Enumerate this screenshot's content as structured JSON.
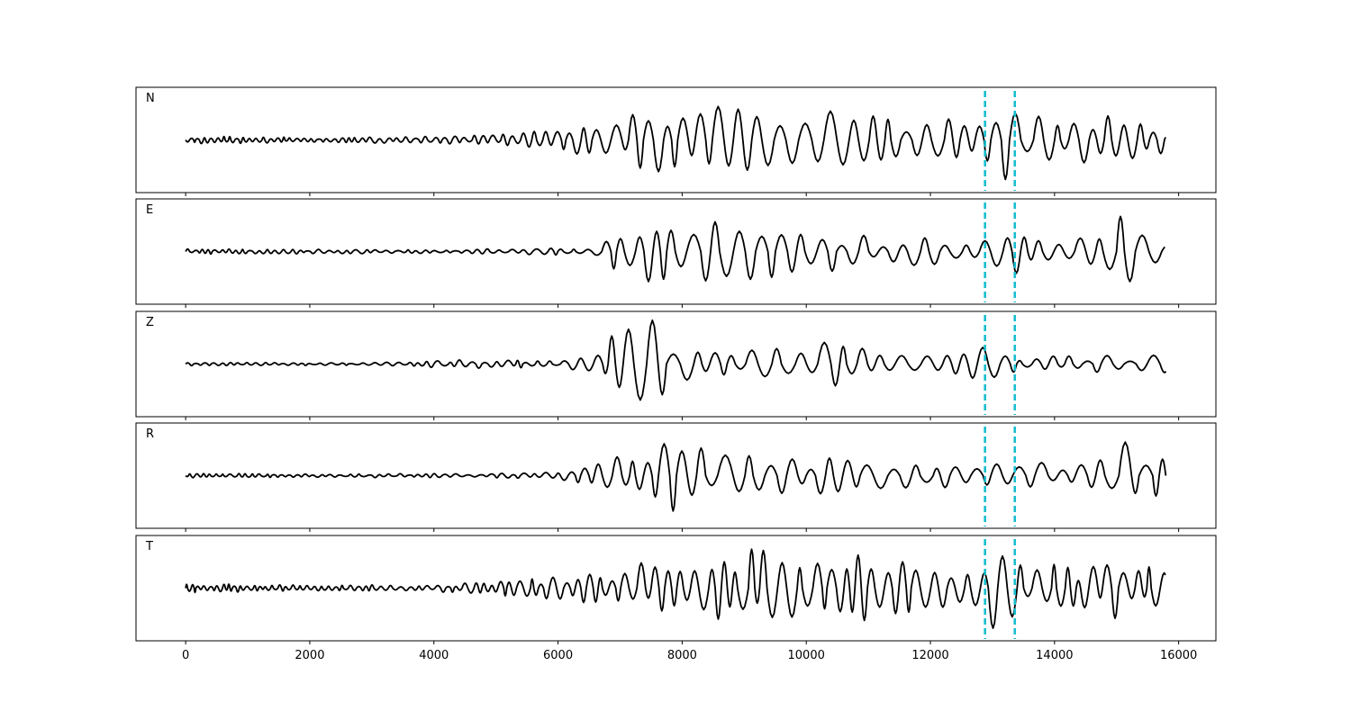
{
  "chart_data": {
    "type": "line",
    "title": "",
    "xlabel": "",
    "ylabel": "",
    "xlim": [
      -800,
      16600
    ],
    "xticks": [
      0,
      2000,
      4000,
      6000,
      8000,
      10000,
      12000,
      14000,
      16000
    ],
    "xtick_labels": [
      "0",
      "2000",
      "4000",
      "6000",
      "8000",
      "10000",
      "12000",
      "14000",
      "16000"
    ],
    "x_start": 0,
    "x_end": 15800,
    "grid": false,
    "legend": "none",
    "colors": {
      "trace": "#000000",
      "marker": "#17becf",
      "frame": "#000000"
    },
    "markers": [
      12880,
      13360
    ],
    "panels": [
      {
        "label": "N",
        "envelope": [
          [
            0,
            0.09
          ],
          [
            2000,
            0.06
          ],
          [
            4000,
            0.08
          ],
          [
            5000,
            0.14
          ],
          [
            6000,
            0.3
          ],
          [
            6600,
            0.4
          ],
          [
            7000,
            0.55
          ],
          [
            7600,
            0.75
          ],
          [
            8000,
            0.92
          ],
          [
            8600,
            0.85
          ],
          [
            9000,
            1.0
          ],
          [
            10000,
            0.7
          ],
          [
            10600,
            0.8
          ],
          [
            11000,
            0.55
          ],
          [
            12000,
            0.55
          ],
          [
            12800,
            0.45
          ],
          [
            13200,
            0.9
          ],
          [
            14000,
            0.5
          ],
          [
            15000,
            0.55
          ],
          [
            15800,
            0.4
          ]
        ],
        "period": [
          [
            0,
            95
          ],
          [
            5000,
            160
          ],
          [
            8000,
            320
          ],
          [
            15800,
            280
          ]
        ]
      },
      {
        "label": "E",
        "envelope": [
          [
            0,
            0.06
          ],
          [
            2000,
            0.05
          ],
          [
            4000,
            0.05
          ],
          [
            6000,
            0.08
          ],
          [
            6600,
            0.15
          ],
          [
            6800,
            0.45
          ],
          [
            7400,
            0.65
          ],
          [
            7800,
            0.9
          ],
          [
            8800,
            0.6
          ],
          [
            9000,
            0.7
          ],
          [
            10000,
            0.55
          ],
          [
            11000,
            0.35
          ],
          [
            12000,
            0.3
          ],
          [
            12800,
            0.2
          ],
          [
            13200,
            0.65
          ],
          [
            13600,
            0.3
          ],
          [
            14600,
            0.35
          ],
          [
            15000,
            1.0
          ],
          [
            15400,
            0.7
          ],
          [
            15800,
            0.3
          ]
        ],
        "period": [
          [
            0,
            110
          ],
          [
            6000,
            200
          ],
          [
            8000,
            360
          ],
          [
            15800,
            330
          ]
        ]
      },
      {
        "label": "Z",
        "envelope": [
          [
            0,
            0.04
          ],
          [
            3000,
            0.03
          ],
          [
            4500,
            0.1
          ],
          [
            6000,
            0.08
          ],
          [
            6600,
            0.2
          ],
          [
            6900,
            0.75
          ],
          [
            7500,
            1.0
          ],
          [
            8000,
            0.45
          ],
          [
            9000,
            0.35
          ],
          [
            10000,
            0.4
          ],
          [
            10500,
            0.55
          ],
          [
            11000,
            0.3
          ],
          [
            12000,
            0.25
          ],
          [
            12800,
            0.4
          ],
          [
            13500,
            0.2
          ],
          [
            15800,
            0.2
          ]
        ],
        "period": [
          [
            0,
            130
          ],
          [
            6000,
            190
          ],
          [
            7500,
            330
          ],
          [
            15800,
            300
          ]
        ]
      },
      {
        "label": "R",
        "envelope": [
          [
            0,
            0.05
          ],
          [
            2000,
            0.04
          ],
          [
            5000,
            0.05
          ],
          [
            6000,
            0.08
          ],
          [
            6600,
            0.25
          ],
          [
            7000,
            0.45
          ],
          [
            7800,
            0.85
          ],
          [
            8600,
            0.6
          ],
          [
            9000,
            0.5
          ],
          [
            10000,
            0.45
          ],
          [
            11000,
            0.3
          ],
          [
            12000,
            0.3
          ],
          [
            12800,
            0.25
          ],
          [
            13000,
            0.55
          ],
          [
            13600,
            0.3
          ],
          [
            14600,
            0.3
          ],
          [
            15000,
            1.0
          ],
          [
            15400,
            0.8
          ],
          [
            15800,
            0.3
          ]
        ],
        "period": [
          [
            0,
            110
          ],
          [
            6000,
            200
          ],
          [
            8000,
            360
          ],
          [
            15800,
            330
          ]
        ]
      },
      {
        "label": "T",
        "envelope": [
          [
            0,
            0.1
          ],
          [
            2000,
            0.07
          ],
          [
            4000,
            0.08
          ],
          [
            5000,
            0.15
          ],
          [
            6000,
            0.3
          ],
          [
            6600,
            0.35
          ],
          [
            7200,
            0.55
          ],
          [
            8000,
            0.65
          ],
          [
            8600,
            0.75
          ],
          [
            9000,
            0.9
          ],
          [
            10000,
            0.8
          ],
          [
            10600,
            0.95
          ],
          [
            11000,
            0.75
          ],
          [
            12000,
            0.55
          ],
          [
            12800,
            0.45
          ],
          [
            13000,
            0.9
          ],
          [
            13500,
            0.5
          ],
          [
            14500,
            0.55
          ],
          [
            15000,
            0.75
          ],
          [
            15800,
            0.35
          ]
        ],
        "period": [
          [
            0,
            90
          ],
          [
            5000,
            150
          ],
          [
            8000,
            260
          ],
          [
            15800,
            230
          ]
        ]
      }
    ]
  }
}
